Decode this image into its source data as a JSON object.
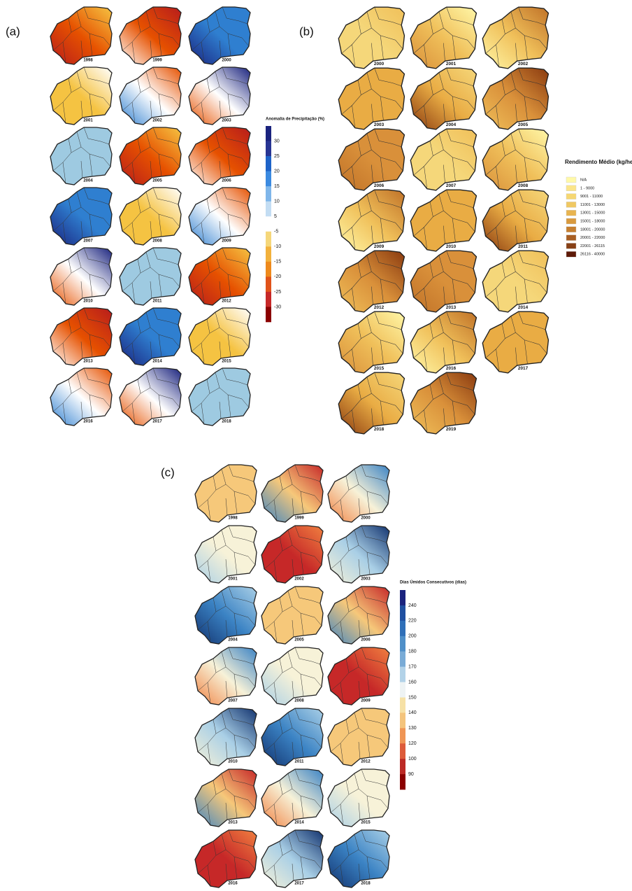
{
  "panels": [
    {
      "label": "(a)",
      "years": [
        1998,
        1999,
        2000,
        2001,
        2002,
        2003,
        2004,
        2005,
        2006,
        2007,
        2008,
        2009,
        2010,
        2011,
        2012,
        2013,
        2014,
        2015,
        2016,
        2017,
        2018
      ],
      "legend_title": "Anomalia de Precipitação (%)",
      "legend_ticks": [
        30,
        25,
        20,
        15,
        10,
        5,
        -5,
        -10,
        -15,
        -20,
        -25,
        -30
      ]
    },
    {
      "label": "(b)",
      "years": [
        2000,
        2001,
        2002,
        2003,
        2004,
        2005,
        2006,
        2007,
        2008,
        2009,
        2010,
        2011,
        2012,
        2013,
        2014,
        2015,
        2016,
        2017,
        2018,
        2019
      ],
      "legend_title": "Rendimento Médio (kg/hec)",
      "legend_items": [
        "N/A",
        "1 - 9000",
        "9001 - 11000",
        "11001 - 13000",
        "13001 - 15000",
        "15001 - 18000",
        "18001 - 20000",
        "20001 - 22000",
        "22001 - 26115",
        "26116 - 40000"
      ]
    },
    {
      "label": "(c)",
      "years": [
        1998,
        1999,
        2000,
        2001,
        2002,
        2003,
        2004,
        2005,
        2006,
        2007,
        2008,
        2009,
        2010,
        2011,
        2012,
        2013,
        2014,
        2015,
        2016,
        2017,
        2018
      ],
      "legend_title": "Dias Úmidos Consecutivos (dias)",
      "legend_ticks": [
        240,
        220,
        200,
        180,
        170,
        160,
        150,
        140,
        130,
        120,
        100,
        90
      ]
    }
  ]
}
